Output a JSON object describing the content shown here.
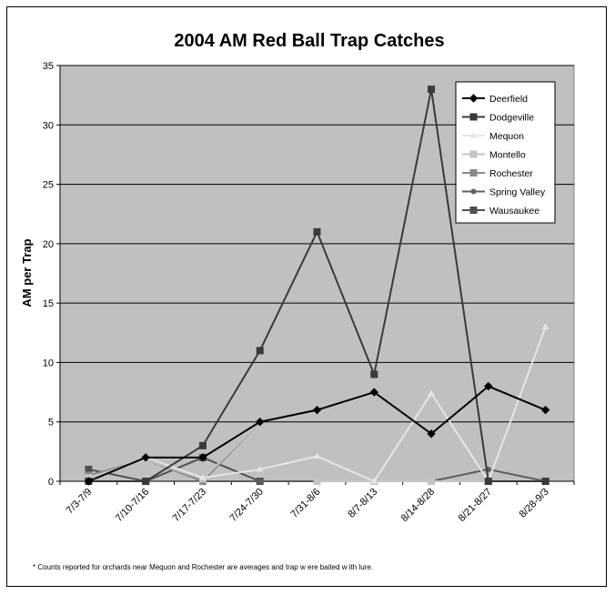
{
  "chart_data": {
    "type": "line",
    "title": "2004 AM Red Ball Trap Catches",
    "xlabel": "",
    "ylabel": "AM per Trap",
    "ylim": [
      0,
      35
    ],
    "yticks": [
      "0",
      "5",
      "10",
      "15",
      "20",
      "25",
      "30",
      "35"
    ],
    "grid": true,
    "legend_position": "top-right",
    "categories": [
      "7/3-7/9",
      "7/10-7/16",
      "7/17-7/23",
      "7/24-7/30",
      "7/31-8/6",
      "8/7-8/13",
      "8/14-8/28",
      "8/21-8/27",
      "8/28-9/3"
    ],
    "series": [
      {
        "name": "Deerfield",
        "color": "#000000",
        "marker": "diamond",
        "values": [
          0,
          2,
          2,
          5,
          6,
          7.5,
          4,
          8,
          6
        ]
      },
      {
        "name": "Dodgeville",
        "color": "#3a3a3a",
        "marker": "square",
        "values": [
          0,
          0,
          3,
          11,
          21,
          9,
          33,
          0,
          0
        ]
      },
      {
        "name": "Mequon",
        "color": "#e6e6e6",
        "marker": "triangle",
        "values": [
          0,
          2,
          0.3,
          1,
          2.1,
          0,
          7.4,
          0,
          13
        ]
      },
      {
        "name": "Montello",
        "color": "#c4c4c4",
        "marker": "square",
        "values": [
          0.3,
          1.8,
          0.2,
          5,
          0,
          0,
          0,
          0,
          0
        ]
      },
      {
        "name": "Rochester",
        "color": "#8a8a8a",
        "marker": "square",
        "values": [
          0.5,
          1.8,
          0,
          5,
          0,
          0,
          0,
          0,
          0
        ]
      },
      {
        "name": "Spring Valley",
        "color": "#5e5e5e",
        "marker": "circle",
        "values": [
          0,
          2,
          0,
          0,
          0,
          0,
          0,
          1,
          0
        ]
      },
      {
        "name": "Wausaukee",
        "color": "#505050",
        "marker": "square",
        "values": [
          1,
          0,
          2,
          0,
          0,
          0,
          0,
          0,
          0
        ]
      }
    ],
    "footnote": "* Counts reported for orchards near Mequon and Rochester are averages and trap w ere baited w ith lure."
  }
}
